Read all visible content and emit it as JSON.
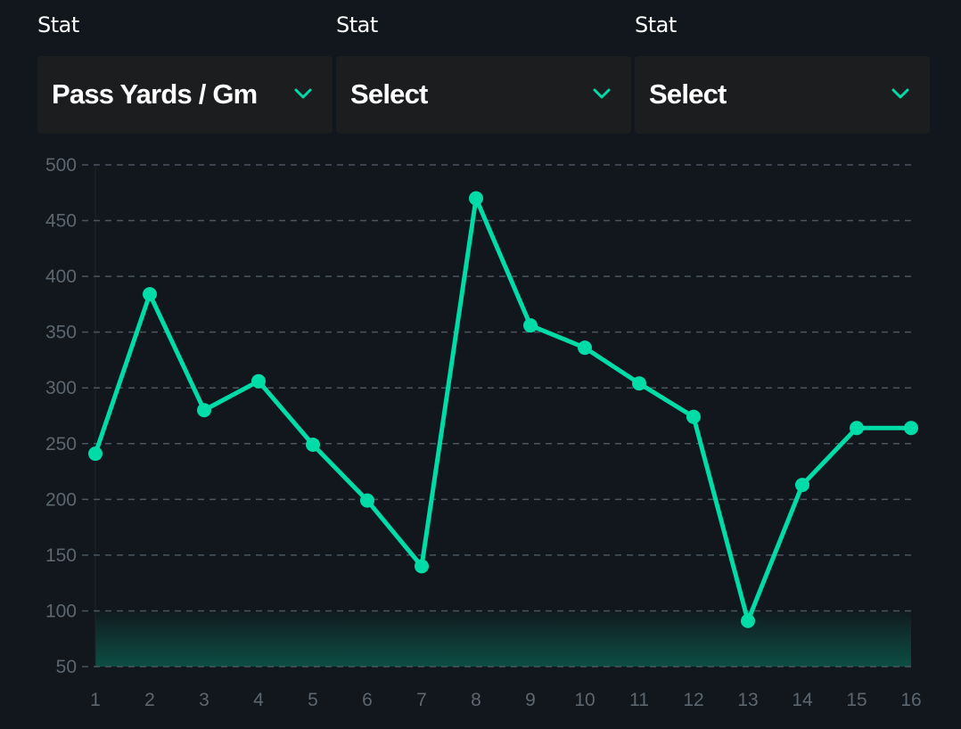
{
  "selectors": [
    {
      "label": "Stat",
      "value": "Pass Yards / Gm"
    },
    {
      "label": "Stat",
      "value": "Select"
    },
    {
      "label": "Stat",
      "value": "Select"
    }
  ],
  "colors": {
    "background": "#11171d",
    "select_bg": "#1c1d1f",
    "accent": "#00dca8",
    "grid": "#4a5560",
    "tick_text": "#5c6670"
  },
  "icons": {
    "dropdown": "chevron-down-icon"
  },
  "chart_data": {
    "type": "line",
    "x": [
      1,
      2,
      3,
      4,
      5,
      6,
      7,
      8,
      9,
      10,
      11,
      12,
      13,
      14,
      15,
      16
    ],
    "series": [
      {
        "values": [
          241,
          384,
          280,
          306,
          249,
          199,
          140,
          470,
          356,
          336,
          304,
          274,
          91,
          213,
          264,
          264
        ]
      }
    ],
    "xlabel": "",
    "ylabel": "",
    "ylim": [
      50,
      500
    ],
    "yticks": [
      50,
      100,
      150,
      200,
      250,
      300,
      350,
      400,
      450,
      500
    ],
    "xticks": [
      "1",
      "2",
      "3",
      "4",
      "5",
      "6",
      "7",
      "8",
      "9",
      "10",
      "11",
      "12",
      "13",
      "14",
      "15",
      "16"
    ],
    "grid": true,
    "grid_style": "dashed",
    "area_fill_below": 100
  }
}
